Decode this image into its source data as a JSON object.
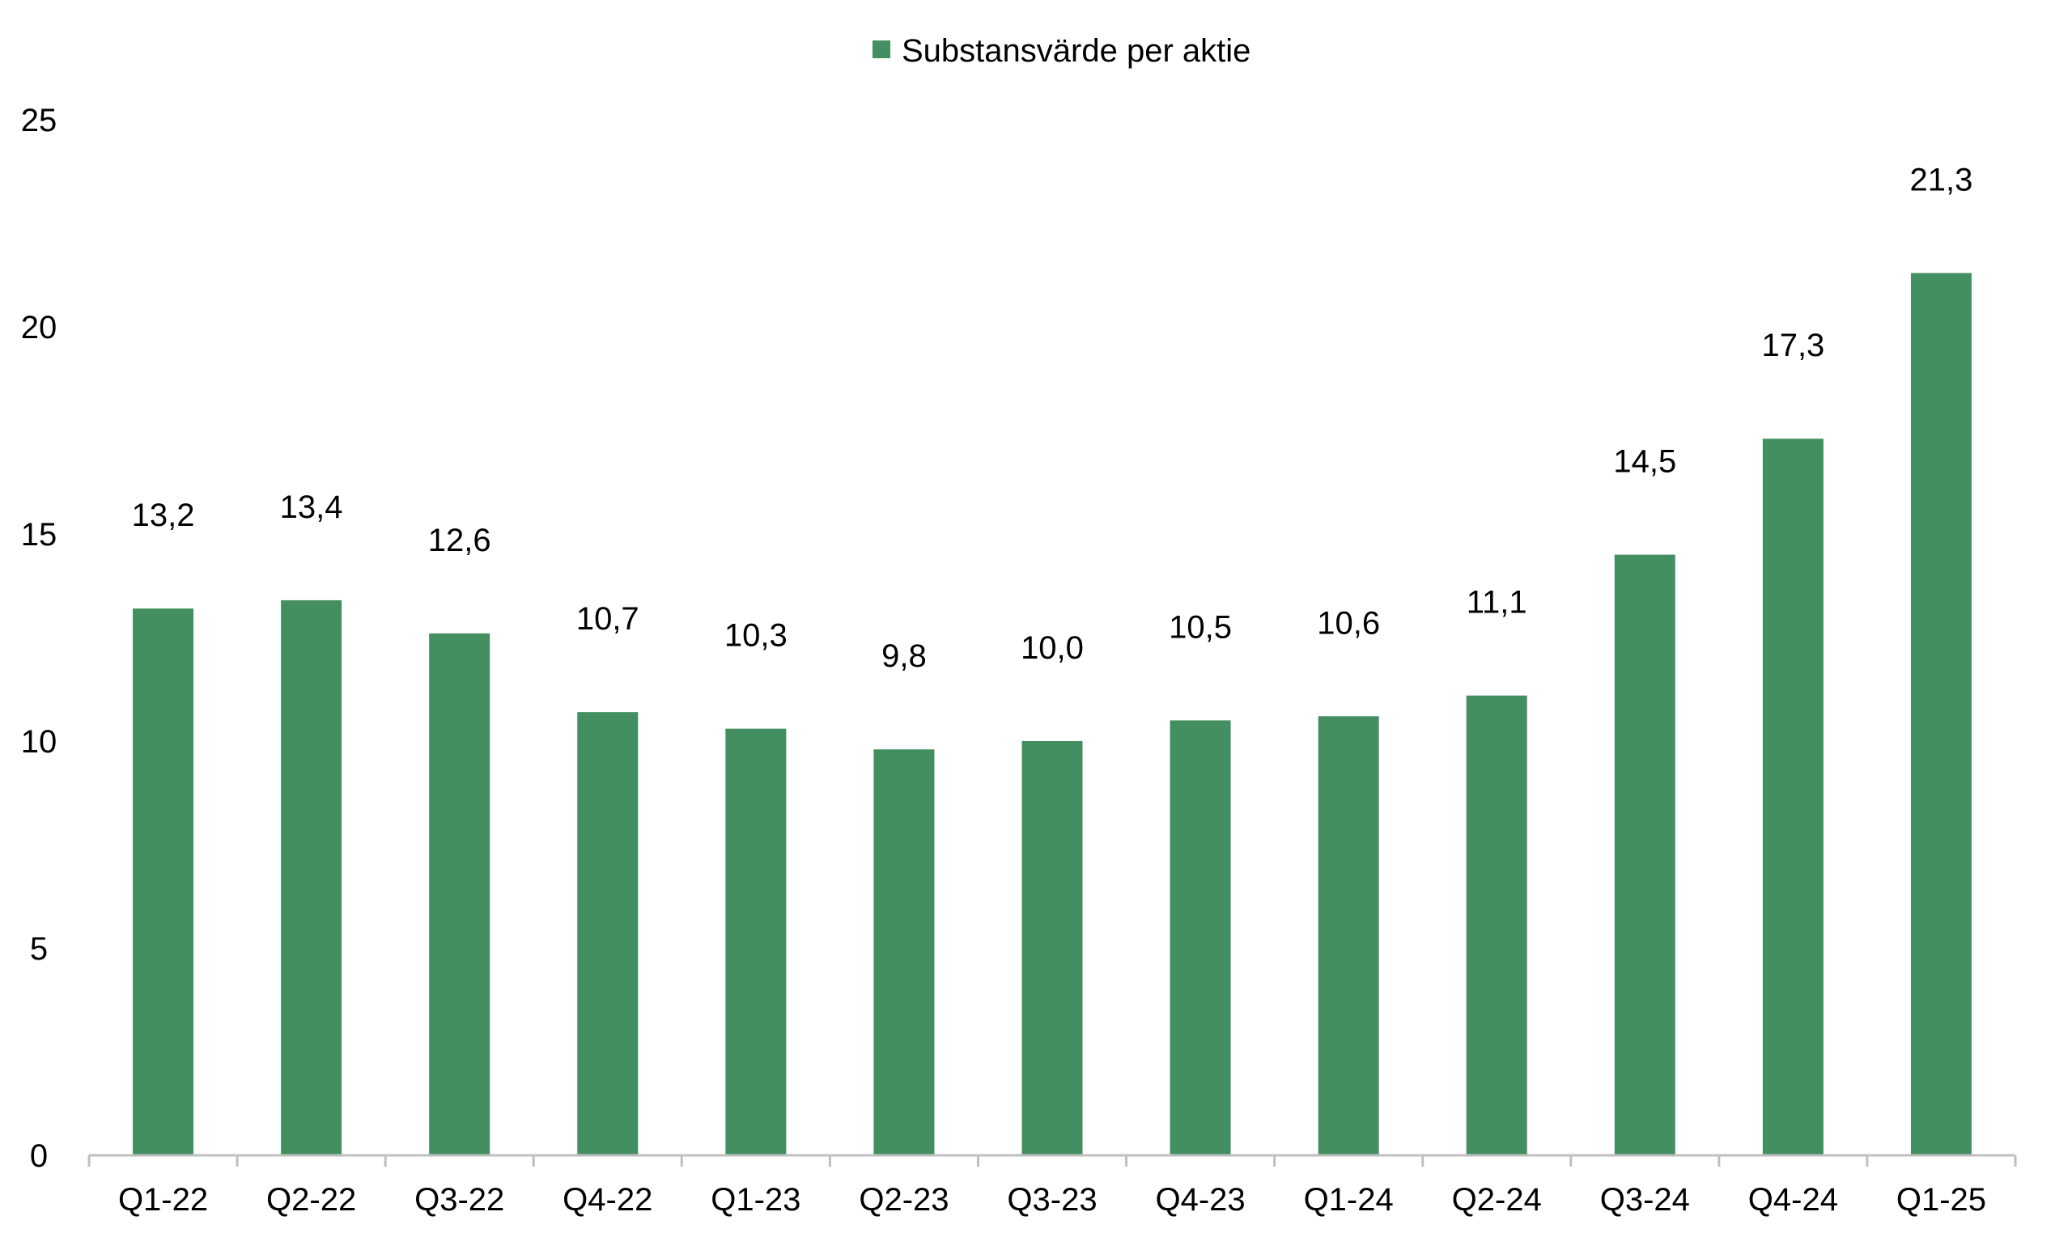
{
  "chart_data": {
    "type": "bar",
    "title": "",
    "xlabel": "",
    "ylabel": "",
    "categories": [
      "Q1-22",
      "Q2-22",
      "Q3-22",
      "Q4-22",
      "Q1-23",
      "Q2-23",
      "Q3-23",
      "Q4-23",
      "Q1-24",
      "Q2-24",
      "Q3-24",
      "Q4-24",
      "Q1-25"
    ],
    "series": [
      {
        "name": "Substansvärde per aktie",
        "values": [
          13.2,
          13.4,
          12.6,
          10.7,
          10.3,
          9.8,
          10.0,
          10.5,
          10.6,
          11.1,
          14.5,
          17.3,
          21.3
        ],
        "data_labels": [
          "13,2",
          "13,4",
          "12,6",
          "10,7",
          "10,3",
          "9,8",
          "10,0",
          "10,5",
          "10,6",
          "11,1",
          "14,5",
          "17,3",
          "21,3"
        ],
        "color": "#448F62"
      }
    ],
    "ylim": [
      0,
      25
    ],
    "yticks": [
      0,
      5,
      10,
      15,
      20,
      25
    ],
    "ytick_labels": [
      "0",
      "5",
      "10",
      "15",
      "20",
      "25"
    ],
    "grid": false,
    "legend": {
      "position": "top-center"
    },
    "axis_color": "#bfbfbf"
  }
}
